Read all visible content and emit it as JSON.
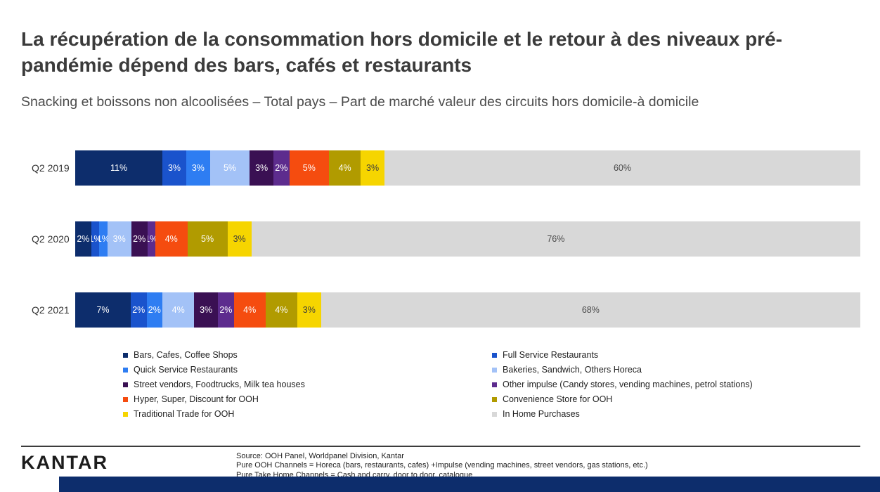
{
  "title": "La récupération de la consommation hors domicile et le retour à des niveaux pré-pandémie dépend des bars, cafés et restaurants",
  "subtitle": "Snacking et boissons non alcoolisées – Total pays – Part de marché valeur des circuits hors domicile-à domicile",
  "chart_data": {
    "type": "bar",
    "stacked": true,
    "orientation": "horizontal",
    "unit": "%",
    "categories": [
      "Q2 2019",
      "Q2 2020",
      "Q2 2021"
    ],
    "series": [
      {
        "name": "Bars, Cafes, Coffee Shops",
        "color": "#0d2d6c",
        "label_color": "#ffffff",
        "values": [
          11,
          2,
          7
        ]
      },
      {
        "name": "Full Service Restaurants",
        "color": "#1a53cc",
        "label_color": "#ffffff",
        "values": [
          3,
          1,
          2
        ]
      },
      {
        "name": "Quick Service Restaurants",
        "color": "#2e7df2",
        "label_color": "#ffffff",
        "values": [
          3,
          1,
          2
        ]
      },
      {
        "name": "Bakeries, Sandwich, Others Horeca",
        "color": "#a3c2f7",
        "label_color": "#ffffff",
        "values": [
          5,
          3,
          4
        ]
      },
      {
        "name": "Street vendors, Foodtrucks, Milk tea houses",
        "color": "#3a1053",
        "label_color": "#ffffff",
        "values": [
          3,
          2,
          3
        ]
      },
      {
        "name": "Other impulse (Candy stores, vending machines, petrol stations)",
        "color": "#5d2c8e",
        "label_color": "#ffffff",
        "values": [
          2,
          1,
          2
        ]
      },
      {
        "name": "Hyper, Super, Discount for OOH",
        "color": "#f54c0f",
        "label_color": "#ffffff",
        "values": [
          5,
          4,
          4
        ]
      },
      {
        "name": "Convenience Store for OOH",
        "color": "#b19b00",
        "label_color": "#ffffff",
        "values": [
          4,
          5,
          4
        ]
      },
      {
        "name": "Traditional Trade for OOH",
        "color": "#f6d500",
        "label_color": "#3c3c3c",
        "values": [
          3,
          3,
          3
        ]
      },
      {
        "name": "In Home Purchases",
        "color": "#d8d8d8",
        "label_color": "#4a4a4a",
        "values": [
          60,
          76,
          68
        ]
      }
    ],
    "legend_position": "bottom",
    "grid": false
  },
  "footer": {
    "logo": "KANTAR",
    "source_lines": [
      "Source: OOH Panel, Worldpanel Division, Kantar",
      "Pure OOH Channels = Horeca (bars, restaurants, cafes) +Impulse (vending machines, street vendors, gas stations, etc.)",
      "Pure Take Home Channels = Cash and carry, door to door, catalogue"
    ]
  }
}
